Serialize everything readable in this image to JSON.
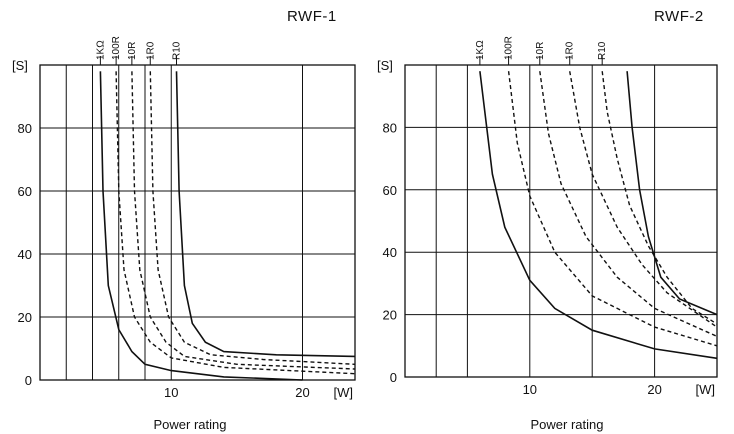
{
  "chart_data": [
    {
      "type": "line",
      "title": "RWF-1",
      "xlabel": "Power rating",
      "x_unit": "[W]",
      "y_unit": "[S]",
      "xlim": [
        0,
        24
      ],
      "ylim": [
        0,
        100
      ],
      "x_ticks": [
        10,
        20
      ],
      "y_ticks": [
        0,
        20,
        40,
        60,
        80
      ],
      "x_gridlines": [
        2,
        4,
        6,
        8,
        10,
        20
      ],
      "y_gridlines": [
        20,
        40,
        60,
        80
      ],
      "grid": true,
      "series": [
        {
          "name": "1KΩ",
          "style": "solid",
          "x": [
            4.6,
            4.8,
            5.2,
            6,
            7,
            8,
            10,
            14,
            20
          ],
          "y": [
            98,
            60,
            30,
            16,
            9,
            5,
            3,
            1,
            0
          ]
        },
        {
          "name": "100R",
          "style": "dashed",
          "x": [
            5.8,
            6.0,
            6.4,
            7.2,
            8.4,
            10,
            14,
            24
          ],
          "y": [
            98,
            60,
            35,
            20,
            12,
            7,
            4,
            2
          ]
        },
        {
          "name": "10R",
          "style": "dashed",
          "x": [
            7.0,
            7.2,
            7.6,
            8.4,
            9.6,
            11,
            15,
            24
          ],
          "y": [
            98,
            60,
            35,
            20,
            12,
            7.5,
            5,
            3.5
          ]
        },
        {
          "name": "1R0",
          "style": "dashed",
          "x": [
            8.4,
            8.6,
            9.0,
            9.8,
            11,
            13,
            17,
            24
          ],
          "y": [
            98,
            60,
            35,
            20,
            12,
            8,
            6.5,
            5
          ]
        },
        {
          "name": "R10",
          "style": "solid",
          "x": [
            10.4,
            10.6,
            11,
            11.6,
            12.6,
            14,
            18,
            24
          ],
          "y": [
            98,
            60,
            30,
            18,
            12,
            9,
            8,
            7.5
          ]
        }
      ]
    },
    {
      "type": "line",
      "title": "RWF-2",
      "xlabel": "Power rating",
      "x_unit": "[W]",
      "y_unit": "[S]",
      "xlim": [
        0,
        25
      ],
      "ylim": [
        0,
        100
      ],
      "x_ticks": [
        10,
        20
      ],
      "y_ticks": [
        0,
        20,
        40,
        60,
        80
      ],
      "x_gridlines": [
        2.5,
        5,
        10,
        15,
        20
      ],
      "y_gridlines": [
        20,
        40,
        60,
        80
      ],
      "grid": true,
      "series": [
        {
          "name": "1KΩ",
          "style": "solid",
          "x": [
            6,
            7,
            8,
            10,
            12,
            15,
            20,
            25
          ],
          "y": [
            98,
            65,
            48,
            31,
            22,
            15,
            9,
            6
          ]
        },
        {
          "name": "100R",
          "style": "dashed",
          "x": [
            8.3,
            9,
            10,
            12,
            15,
            20,
            25
          ],
          "y": [
            98,
            75,
            58,
            40,
            26,
            16,
            10
          ]
        },
        {
          "name": "10R",
          "style": "dashed",
          "x": [
            10.8,
            11.5,
            12.5,
            14.5,
            17,
            20,
            25
          ],
          "y": [
            98,
            78,
            62,
            45,
            32,
            22,
            13
          ]
        },
        {
          "name": "1R0",
          "style": "dashed",
          "x": [
            13.2,
            14,
            15,
            17,
            19,
            21,
            25
          ],
          "y": [
            98,
            80,
            65,
            48,
            36,
            27,
            16
          ]
        },
        {
          "name": "R10",
          "style": "dashed",
          "x": [
            15.8,
            16.2,
            17,
            18,
            19.5,
            21,
            23,
            25
          ],
          "y": [
            98,
            85,
            70,
            55,
            42,
            32,
            22,
            17
          ]
        },
        {
          "name": "",
          "style": "solid",
          "x": [
            17.8,
            18.2,
            18.8,
            19.5,
            20.5,
            22,
            25
          ],
          "y": [
            98,
            80,
            60,
            45,
            32,
            25,
            20
          ]
        }
      ]
    }
  ]
}
